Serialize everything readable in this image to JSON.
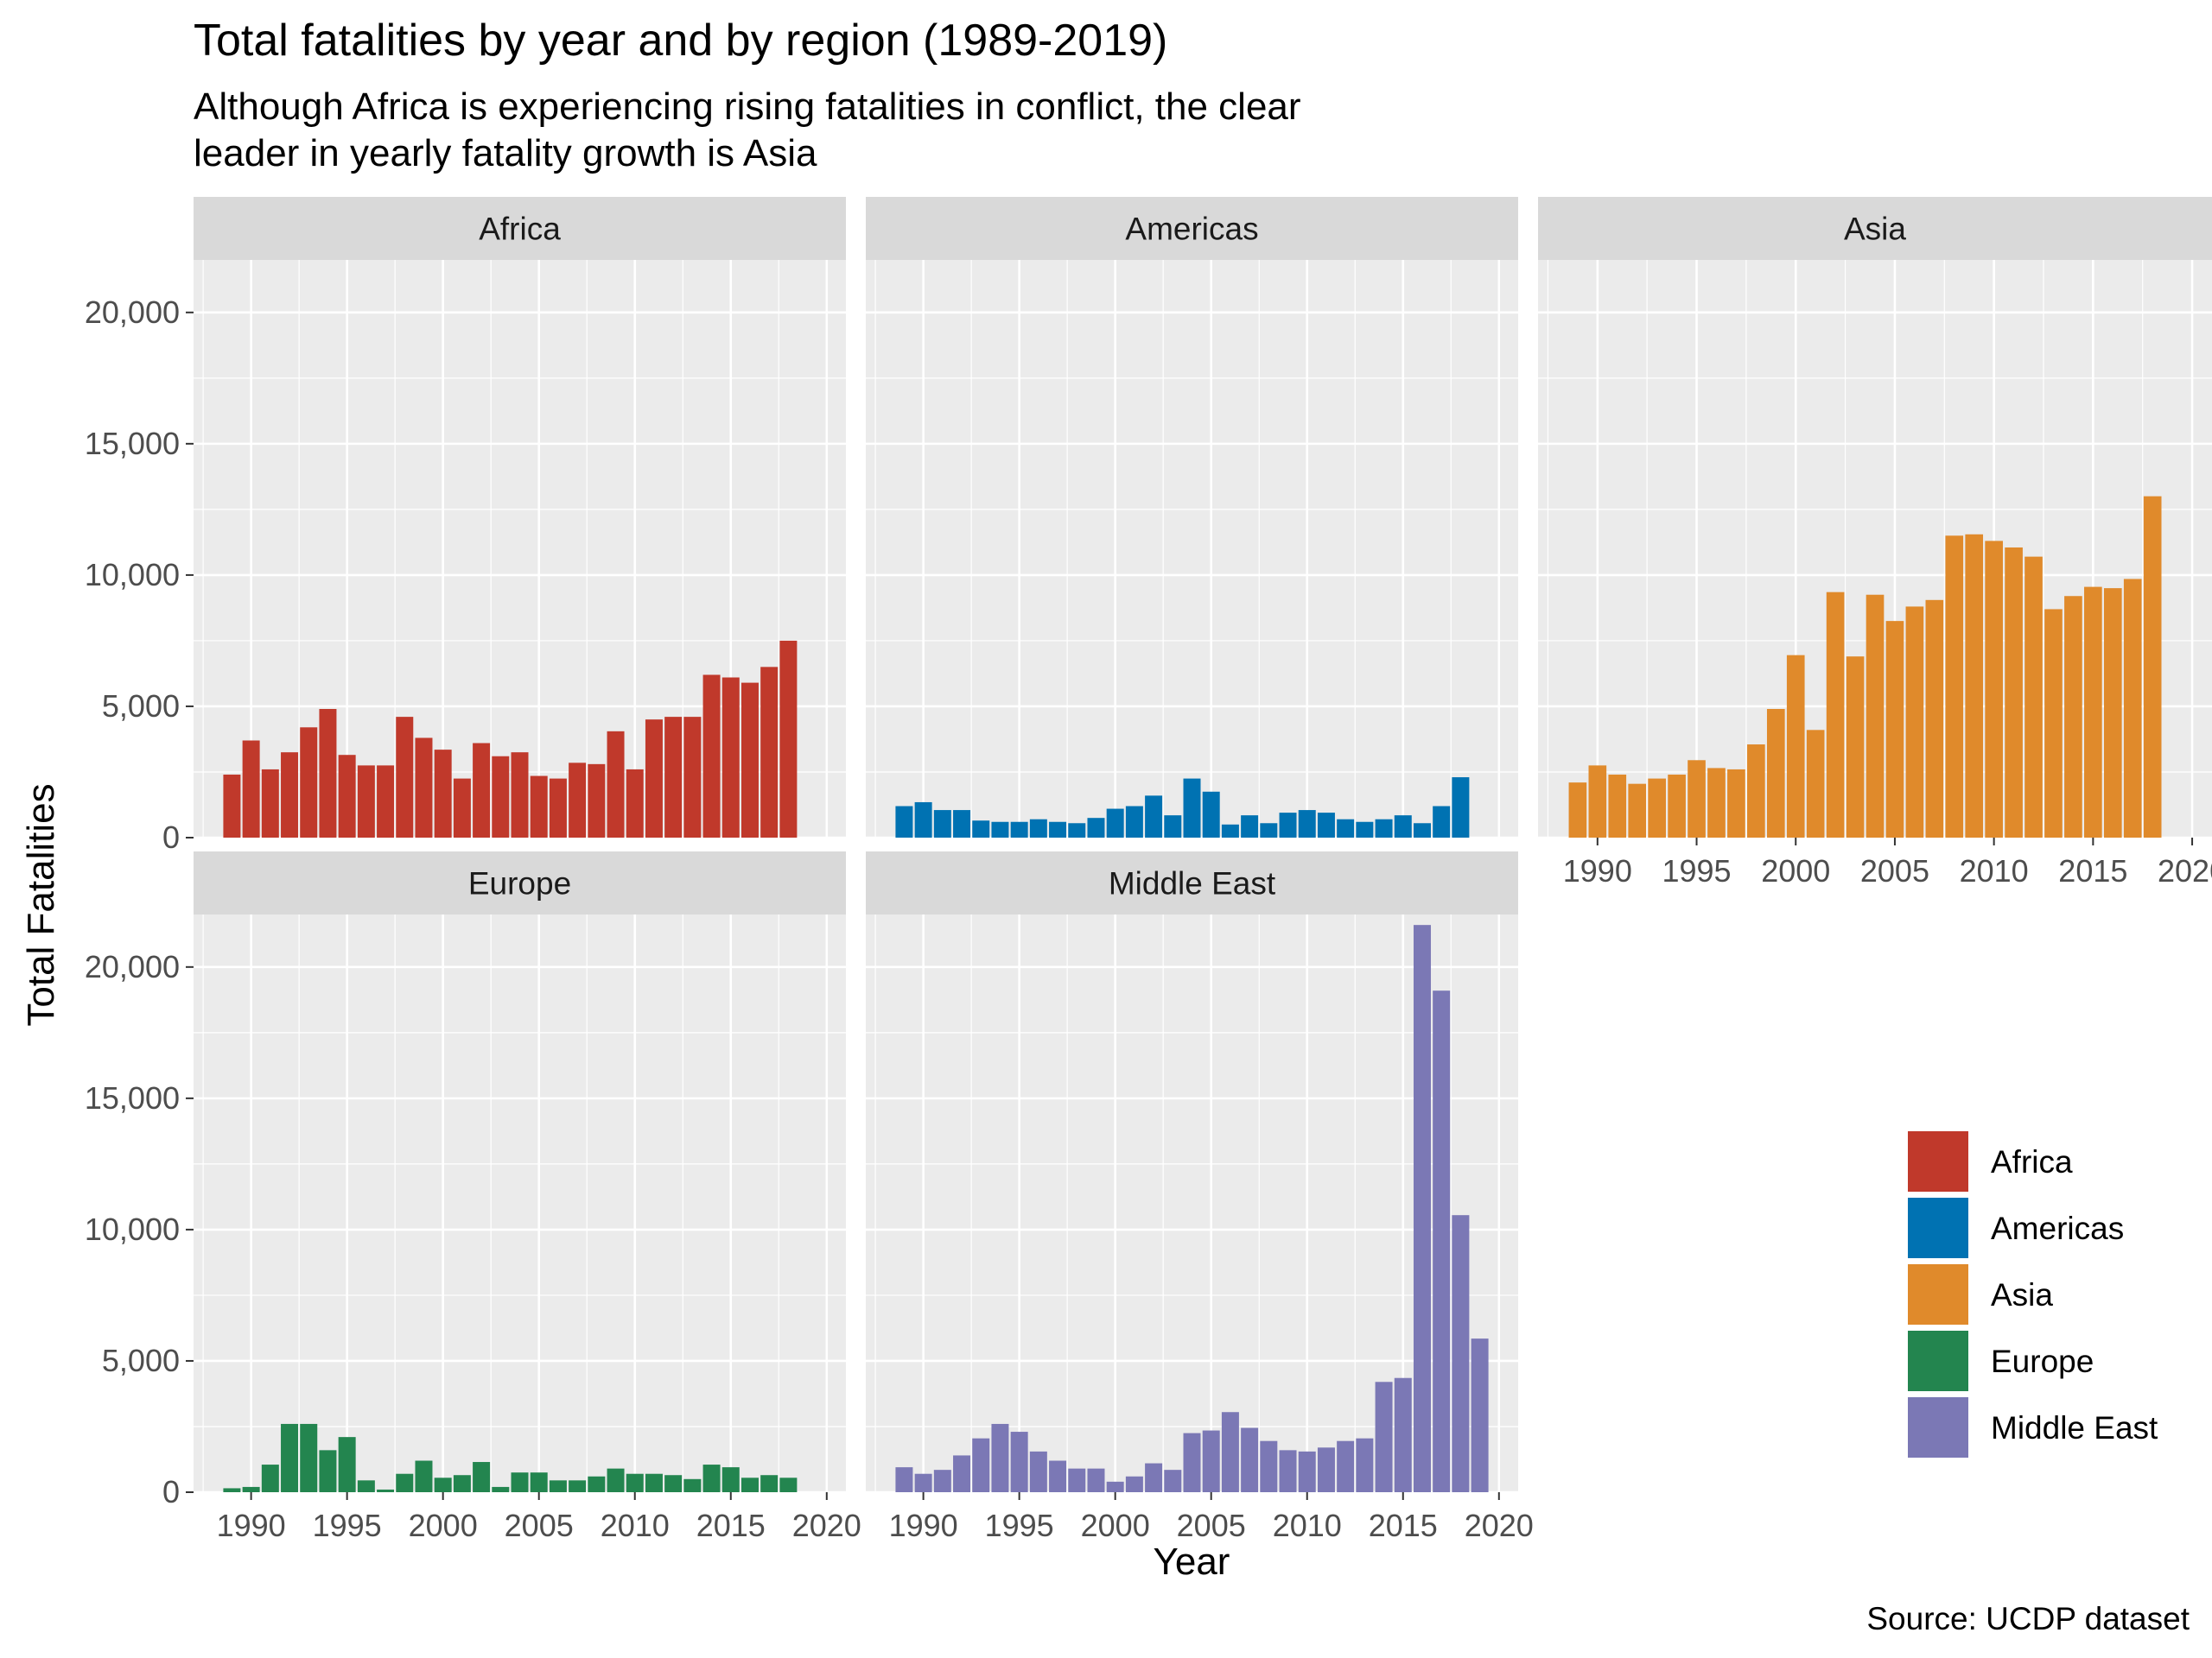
{
  "chart_data": {
    "type": "bar",
    "title": "Total fatalities by year and by region (1989-2019)",
    "subtitle": [
      "Although Africa is experiencing rising fatalities in conflict, the clear",
      "leader in yearly fatality growth is Asia"
    ],
    "xlabel": "Year",
    "ylabel": "Total Fatalities",
    "caption": "Source: UCDP dataset",
    "xlim": [
      1987,
      2021
    ],
    "ylim": [
      0,
      22000
    ],
    "x_ticks": [
      1990,
      1995,
      2000,
      2005,
      2010,
      2015,
      2020
    ],
    "y_ticks": [
      0,
      5000,
      10000,
      15000,
      20000
    ],
    "y_tick_labels": [
      "0",
      "5,000",
      "10,000",
      "15,000",
      "20,000"
    ],
    "grid": true,
    "legend_position": "right",
    "facets": [
      {
        "name": "Africa",
        "color": "#C0392B",
        "x": [
          1989,
          1990,
          1991,
          1992,
          1993,
          1994,
          1995,
          1996,
          1997,
          1998,
          1999,
          2000,
          2001,
          2002,
          2003,
          2004,
          2005,
          2006,
          2007,
          2008,
          2009,
          2010,
          2011,
          2012,
          2013,
          2014,
          2015,
          2016,
          2017,
          2018
        ],
        "values": [
          2400,
          3700,
          2600,
          3250,
          4200,
          4900,
          3150,
          2750,
          2750,
          4600,
          3800,
          3350,
          2250,
          3600,
          3100,
          3250,
          2350,
          2250,
          2850,
          2800,
          4050,
          2600,
          4500,
          4600,
          4600,
          6200,
          6100,
          5900,
          6500,
          7500
        ]
      },
      {
        "name": "Americas",
        "color": "#0072B2",
        "x": [
          1989,
          1990,
          1991,
          1992,
          1993,
          1994,
          1995,
          1996,
          1997,
          1998,
          1999,
          2000,
          2001,
          2002,
          2003,
          2004,
          2005,
          2006,
          2007,
          2008,
          2009,
          2010,
          2011,
          2012,
          2013,
          2014,
          2015,
          2016,
          2017,
          2018
        ],
        "values": [
          1200,
          1350,
          1050,
          1050,
          650,
          600,
          600,
          700,
          600,
          550,
          750,
          1100,
          1200,
          1600,
          850,
          2250,
          1750,
          500,
          850,
          550,
          950,
          1050,
          950,
          700,
          600,
          700,
          850,
          550,
          1200,
          2300
        ]
      },
      {
        "name": "Asia",
        "color": "#E08A2B",
        "x": [
          1989,
          1990,
          1991,
          1992,
          1993,
          1994,
          1995,
          1996,
          1997,
          1998,
          1999,
          2000,
          2001,
          2002,
          2003,
          2004,
          2005,
          2006,
          2007,
          2008,
          2009,
          2010,
          2011,
          2012,
          2013,
          2014,
          2015,
          2016,
          2017,
          2018
        ],
        "values": [
          2100,
          2750,
          2400,
          2050,
          2250,
          2400,
          2950,
          2650,
          2600,
          3550,
          4900,
          6950,
          4100,
          9350,
          6900,
          9250,
          8250,
          8800,
          9050,
          11500,
          11550,
          11300,
          11050,
          10700,
          8700,
          9200,
          9550,
          9500,
          9850,
          13000
        ]
      },
      {
        "name": "Europe",
        "color": "#23854F",
        "x": [
          1989,
          1990,
          1991,
          1992,
          1993,
          1994,
          1995,
          1996,
          1997,
          1998,
          1999,
          2000,
          2001,
          2002,
          2003,
          2004,
          2005,
          2006,
          2007,
          2008,
          2009,
          2010,
          2011,
          2012,
          2013,
          2014,
          2015,
          2016,
          2017,
          2018
        ],
        "values": [
          150,
          200,
          1050,
          2600,
          2600,
          1600,
          2100,
          450,
          100,
          700,
          1200,
          550,
          650,
          1150,
          200,
          750,
          750,
          450,
          450,
          600,
          900,
          700,
          700,
          650,
          500,
          1050,
          950,
          550,
          650,
          550
        ]
      },
      {
        "name": "Middle East",
        "color": "#7B78B5",
        "x": [
          1989,
          1990,
          1991,
          1992,
          1993,
          1994,
          1995,
          1996,
          1997,
          1998,
          1999,
          2000,
          2001,
          2002,
          2003,
          2004,
          2005,
          2006,
          2007,
          2008,
          2009,
          2010,
          2011,
          2012,
          2013,
          2014,
          2015,
          2016,
          2017,
          2018,
          2019
        ],
        "values": [
          950,
          700,
          850,
          1400,
          2050,
          2600,
          2300,
          1550,
          1200,
          900,
          900,
          400,
          600,
          1100,
          850,
          2250,
          2350,
          3050,
          2450,
          1950,
          1600,
          1550,
          1700,
          1950,
          2050,
          4200,
          4350,
          21600,
          19100,
          10550,
          5850
        ]
      }
    ]
  }
}
